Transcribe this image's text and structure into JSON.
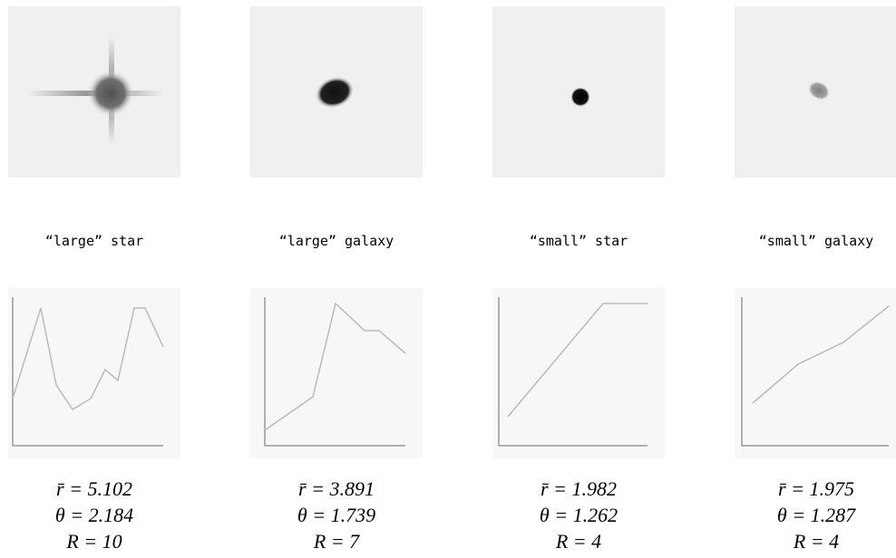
{
  "panels": [
    {
      "caption": "“large” star",
      "stats": [
        "r̄ = 5.102",
        "θ = 2.184",
        "R = 10"
      ]
    },
    {
      "caption": "“large” galaxy",
      "stats": [
        "r̄ = 3.891",
        "θ = 1.739",
        "R = 7"
      ]
    },
    {
      "caption": "“small” star",
      "stats": [
        "r̄ = 1.982",
        "θ = 1.262",
        "R = 4"
      ]
    },
    {
      "caption": "“small” galaxy",
      "stats": [
        "r̄ = 1.975",
        "θ = 1.287",
        "R = 4"
      ]
    }
  ]
}
